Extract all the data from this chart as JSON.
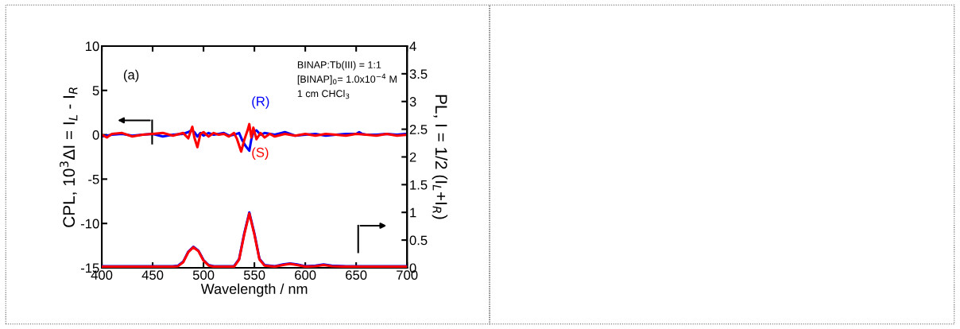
{
  "chart_data": {
    "type": "line",
    "xlabel": "Wavelength / nm",
    "ylabel": "CPL, 10$^{3}$ΔI = I$_{L}$ - I$_{R}$",
    "y2label": "PL, I = 1/2 (I$_{L}$+I$_{R}$)",
    "xlim": [
      400,
      700
    ],
    "xticks": [
      400,
      450,
      500,
      550,
      600,
      650,
      700
    ],
    "ylim": [
      -15,
      10
    ],
    "yticks": [
      -15,
      -10,
      -5,
      0,
      5,
      10
    ],
    "y2lim": [
      0,
      4
    ],
    "y2ticks": [
      0,
      0.5,
      1,
      1.5,
      2,
      2.5,
      3,
      3.5,
      4
    ],
    "grid": false,
    "legend": false,
    "marker": "none",
    "line_style": "solid",
    "annotations": [
      "(a)",
      "BINAP:Tb(III) = 1:1",
      "[BINAP]$_{0}$= 1.0x10$^{−4}$ M",
      "1 cm CHCl$_{3}$"
    ],
    "series": [
      {
        "name": "(R)",
        "color": "#0000ff",
        "x": [
          400,
          410,
          420,
          430,
          440,
          450,
          460,
          470,
          480,
          485,
          488,
          491,
          494,
          497,
          500,
          505,
          510,
          515,
          520,
          525,
          530,
          535,
          538,
          541,
          543,
          545,
          547,
          549,
          552,
          556,
          560,
          570,
          580,
          590,
          600,
          610,
          620,
          630,
          640,
          650,
          653,
          656,
          660,
          670,
          680,
          690,
          700
        ],
        "values": [
          -0.2,
          0,
          0.1,
          -0.1,
          0,
          0.1,
          -0.2,
          0,
          0.1,
          0.3,
          0.5,
          0.3,
          -0.2,
          0.2,
          -0.1,
          0.2,
          0,
          0.1,
          0.2,
          -0.1,
          0,
          0.2,
          -0.6,
          -1.2,
          -1.5,
          -1.8,
          -0.5,
          0.3,
          0.5,
          0,
          0.2,
          0,
          0.3,
          -0.1,
          0,
          0.1,
          -0.1,
          0,
          0.1,
          0.1,
          0.3,
          0.1,
          0,
          0,
          0.1,
          0,
          0.1
        ]
      },
      {
        "name": "(S)",
        "color": "#ff0000",
        "x": [
          400,
          405,
          410,
          420,
          430,
          440,
          450,
          460,
          470,
          480,
          485,
          489,
          491,
          494,
          497,
          500,
          505,
          510,
          515,
          520,
          525,
          530,
          533,
          537,
          540,
          543,
          545,
          547,
          549,
          552,
          556,
          560,
          565,
          570,
          580,
          590,
          600,
          610,
          620,
          630,
          640,
          650,
          660,
          670,
          680,
          690,
          700
        ],
        "values": [
          0,
          -0.3,
          0.1,
          0.2,
          -0.2,
          0,
          0.1,
          0.2,
          -0.1,
          0.2,
          -0.4,
          0.9,
          -0.3,
          -1.4,
          0.1,
          0.3,
          -0.2,
          0.2,
          0,
          0.1,
          -0.2,
          0.2,
          -0.5,
          -1.9,
          -0.6,
          0.4,
          1.2,
          -0.3,
          0.8,
          -0.5,
          0.2,
          -0.3,
          0.1,
          -0.2,
          0.1,
          -0.1,
          0.1,
          -0.1,
          0.1,
          0,
          -0.1,
          0.1,
          0,
          -0.1,
          0.1,
          -0.1,
          0
        ]
      },
      {
        "color": "#0000ff",
        "axis": "y2",
        "x": [
          400,
          470,
          475,
          480,
          485,
          490,
          495,
          500,
          505,
          510,
          530,
          535,
          540,
          545,
          550,
          555,
          560,
          570,
          578,
          585,
          592,
          600,
          610,
          618,
          626,
          640,
          700
        ],
        "values": [
          0.03,
          0.03,
          0.04,
          0.11,
          0.29,
          0.38,
          0.31,
          0.14,
          0.05,
          0.03,
          0.03,
          0.16,
          0.62,
          1.0,
          0.62,
          0.16,
          0.05,
          0.03,
          0.06,
          0.08,
          0.06,
          0.03,
          0.04,
          0.06,
          0.04,
          0.03,
          0.03
        ]
      },
      {
        "color": "#ff0000",
        "axis": "y2",
        "x": [
          400,
          470,
          475,
          480,
          485,
          490,
          495,
          500,
          505,
          510,
          530,
          535,
          540,
          545,
          550,
          555,
          560,
          570,
          578,
          585,
          592,
          600,
          610,
          618,
          626,
          640,
          700
        ],
        "values": [
          0.02,
          0.02,
          0.03,
          0.1,
          0.28,
          0.37,
          0.3,
          0.13,
          0.04,
          0.02,
          0.02,
          0.15,
          0.6,
          0.98,
          0.6,
          0.15,
          0.04,
          0.02,
          0.05,
          0.07,
          0.05,
          0.02,
          0.03,
          0.05,
          0.03,
          0.02,
          0.02
        ]
      }
    ]
  }
}
